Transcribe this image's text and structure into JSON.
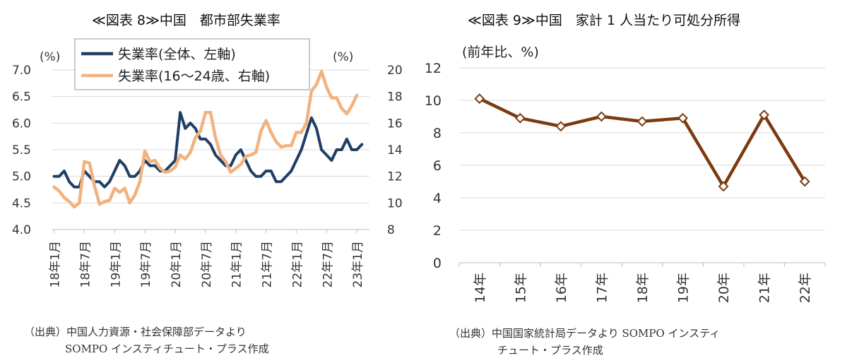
{
  "left": {
    "title": "≪図表 8≫中国　都市部失業率",
    "source_line1": "（出典）中国人力資源・社会保障部データより",
    "source_line2": "SOMPO インスティチュート・プラス作成"
  },
  "right": {
    "title": "≪図表 9≫中国　家計 1 人当たり可処分所得",
    "source_line1": "（出典）中国国家統計局データより SOMPO インスティ",
    "source_line2": "チュート・プラス作成"
  },
  "chart_data": [
    {
      "type": "line",
      "title": "",
      "y_unit_left": "(%)",
      "y_unit_right": "(%)",
      "ylim_left": [
        4.0,
        7.0
      ],
      "yticks_left": [
        "7.0",
        "6.5",
        "6.0",
        "5.5",
        "5.0",
        "4.5",
        "4.0"
      ],
      "ylim_right": [
        8,
        20
      ],
      "yticks_right": [
        "20",
        "18",
        "16",
        "14",
        "12",
        "10",
        "8"
      ],
      "xtick_labels": [
        "18年1月",
        "18年7月",
        "19年1月",
        "19年7月",
        "20年1月",
        "20年7月",
        "21年1月",
        "21年7月",
        "22年1月",
        "22年7月",
        "23年1月"
      ],
      "xtick_months": [
        0,
        6,
        12,
        18,
        24,
        30,
        36,
        42,
        48,
        54,
        60
      ],
      "months_count": 63,
      "legend_position": "top-left",
      "grid": true,
      "series": [
        {
          "name": "失業率(全体、左軸)",
          "axis": "left",
          "color": "#1f3f66",
          "values": [
            5.0,
            5.0,
            5.1,
            4.9,
            4.8,
            4.8,
            5.1,
            5.0,
            4.9,
            4.9,
            4.8,
            4.9,
            5.1,
            5.3,
            5.2,
            5.0,
            5.0,
            5.1,
            5.3,
            5.2,
            5.2,
            5.1,
            5.1,
            5.2,
            5.3,
            6.2,
            5.9,
            6.0,
            5.9,
            5.7,
            5.7,
            5.6,
            5.4,
            5.3,
            5.2,
            5.2,
            5.4,
            5.5,
            5.3,
            5.1,
            5.0,
            5.0,
            5.1,
            5.1,
            4.9,
            4.9,
            5.0,
            5.1,
            5.3,
            5.5,
            5.8,
            6.1,
            5.9,
            5.5,
            5.4,
            5.3,
            5.5,
            5.5,
            5.7,
            5.5,
            5.5,
            5.6
          ]
        },
        {
          "name": "失業率(16～24歳、右軸)",
          "axis": "right",
          "color": "#f2b27f",
          "values": [
            11.2,
            10.9,
            10.4,
            10.1,
            9.7,
            10.0,
            13.1,
            13.0,
            11.3,
            9.9,
            10.1,
            10.2,
            11.1,
            10.8,
            11.1,
            10.0,
            10.6,
            11.6,
            13.9,
            13.1,
            13.2,
            12.6,
            12.3,
            12.4,
            12.7,
            13.6,
            13.3,
            13.8,
            14.9,
            15.4,
            16.8,
            16.8,
            14.9,
            13.6,
            13.1,
            12.3,
            12.6,
            12.9,
            13.5,
            13.6,
            13.8,
            15.4,
            16.2,
            15.3,
            14.6,
            14.2,
            14.3,
            14.3,
            15.3,
            15.3,
            16.0,
            18.4,
            18.9,
            19.9,
            18.7,
            17.9,
            17.9,
            17.1,
            16.7,
            17.3,
            18.1
          ]
        }
      ]
    },
    {
      "type": "line",
      "title": "",
      "ylabel": "(前年比、%)",
      "ylim": [
        0,
        12
      ],
      "yticks": [
        "12",
        "10",
        "8",
        "6",
        "4",
        "2",
        "0"
      ],
      "categories": [
        "14年",
        "15年",
        "16年",
        "17年",
        "18年",
        "19年",
        "20年",
        "21年",
        "22年"
      ],
      "grid": true,
      "series": [
        {
          "color": "#7b3a10",
          "values": [
            10.1,
            8.9,
            8.4,
            9.0,
            8.7,
            8.9,
            4.7,
            9.1,
            5.0
          ]
        }
      ]
    }
  ]
}
